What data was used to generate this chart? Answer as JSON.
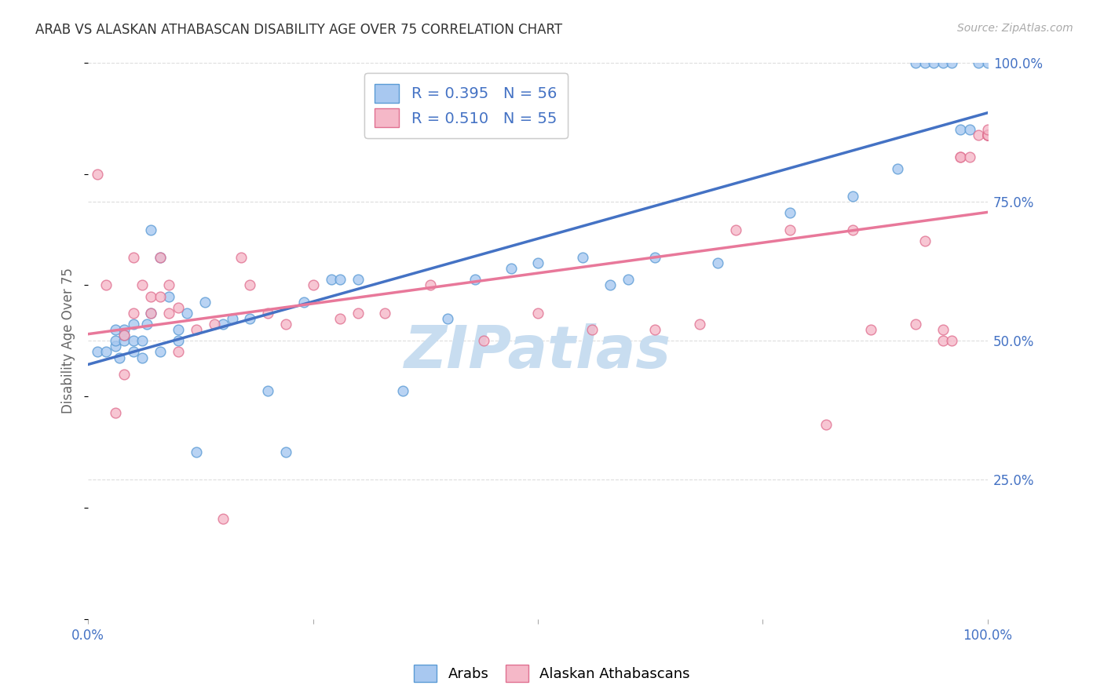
{
  "title": "ARAB VS ALASKAN ATHABASCAN DISABILITY AGE OVER 75 CORRELATION CHART",
  "source": "Source: ZipAtlas.com",
  "ylabel": "Disability Age Over 75",
  "xlim": [
    0.0,
    1.0
  ],
  "ylim": [
    0.0,
    1.0
  ],
  "arab_color": "#a8c8f0",
  "athabascan_color": "#f5b8c8",
  "arab_edge_color": "#5b9bd5",
  "athabascan_edge_color": "#e07090",
  "arab_line_color": "#4472c4",
  "athabascan_line_color": "#e8789a",
  "watermark": "ZIPatlas",
  "watermark_color": "#c8ddf0",
  "background_color": "#ffffff",
  "grid_color": "#dddddd",
  "title_color": "#333333",
  "source_color": "#aaaaaa",
  "axis_label_color": "#666666",
  "tick_color": "#4472c4",
  "arab_r": "0.395",
  "arab_n": "56",
  "athabascan_r": "0.510",
  "athabascan_n": "55",
  "arab_x": [
    0.01,
    0.02,
    0.03,
    0.03,
    0.03,
    0.035,
    0.04,
    0.04,
    0.04,
    0.05,
    0.05,
    0.05,
    0.06,
    0.06,
    0.065,
    0.07,
    0.07,
    0.08,
    0.08,
    0.09,
    0.1,
    0.1,
    0.11,
    0.12,
    0.13,
    0.15,
    0.16,
    0.18,
    0.2,
    0.22,
    0.24,
    0.27,
    0.28,
    0.3,
    0.35,
    0.4,
    0.43,
    0.47,
    0.5,
    0.55,
    0.58,
    0.6,
    0.63,
    0.7,
    0.78,
    0.85,
    0.9,
    0.92,
    0.93,
    0.94,
    0.95,
    0.96,
    0.97,
    0.98,
    0.99,
    1.0
  ],
  "arab_y": [
    0.48,
    0.48,
    0.49,
    0.5,
    0.52,
    0.47,
    0.5,
    0.52,
    0.51,
    0.5,
    0.48,
    0.53,
    0.47,
    0.5,
    0.53,
    0.55,
    0.7,
    0.65,
    0.48,
    0.58,
    0.52,
    0.5,
    0.55,
    0.3,
    0.57,
    0.53,
    0.54,
    0.54,
    0.41,
    0.3,
    0.57,
    0.61,
    0.61,
    0.61,
    0.41,
    0.54,
    0.61,
    0.63,
    0.64,
    0.65,
    0.6,
    0.61,
    0.65,
    0.64,
    0.73,
    0.76,
    0.81,
    1.0,
    1.0,
    1.0,
    1.0,
    1.0,
    0.88,
    0.88,
    1.0,
    1.0
  ],
  "athabascan_x": [
    0.01,
    0.02,
    0.03,
    0.04,
    0.04,
    0.05,
    0.05,
    0.06,
    0.07,
    0.07,
    0.08,
    0.08,
    0.09,
    0.09,
    0.1,
    0.1,
    0.12,
    0.14,
    0.15,
    0.17,
    0.18,
    0.2,
    0.22,
    0.25,
    0.28,
    0.3,
    0.33,
    0.38,
    0.44,
    0.5,
    0.56,
    0.63,
    0.68,
    0.72,
    0.78,
    0.82,
    0.85,
    0.87,
    0.92,
    0.93,
    0.95,
    0.95,
    0.96,
    0.97,
    0.97,
    0.98,
    0.99,
    1.0,
    1.0,
    1.0,
    1.0,
    1.0,
    1.0,
    1.0,
    1.0
  ],
  "athabascan_y": [
    0.8,
    0.6,
    0.37,
    0.51,
    0.44,
    0.65,
    0.55,
    0.6,
    0.55,
    0.58,
    0.58,
    0.65,
    0.55,
    0.6,
    0.56,
    0.48,
    0.52,
    0.53,
    0.18,
    0.65,
    0.6,
    0.55,
    0.53,
    0.6,
    0.54,
    0.55,
    0.55,
    0.6,
    0.5,
    0.55,
    0.52,
    0.52,
    0.53,
    0.7,
    0.7,
    0.35,
    0.7,
    0.52,
    0.53,
    0.68,
    0.5,
    0.52,
    0.5,
    0.83,
    0.83,
    0.83,
    0.87,
    0.87,
    0.87,
    0.87,
    0.87,
    0.87,
    0.87,
    0.87,
    0.88
  ]
}
